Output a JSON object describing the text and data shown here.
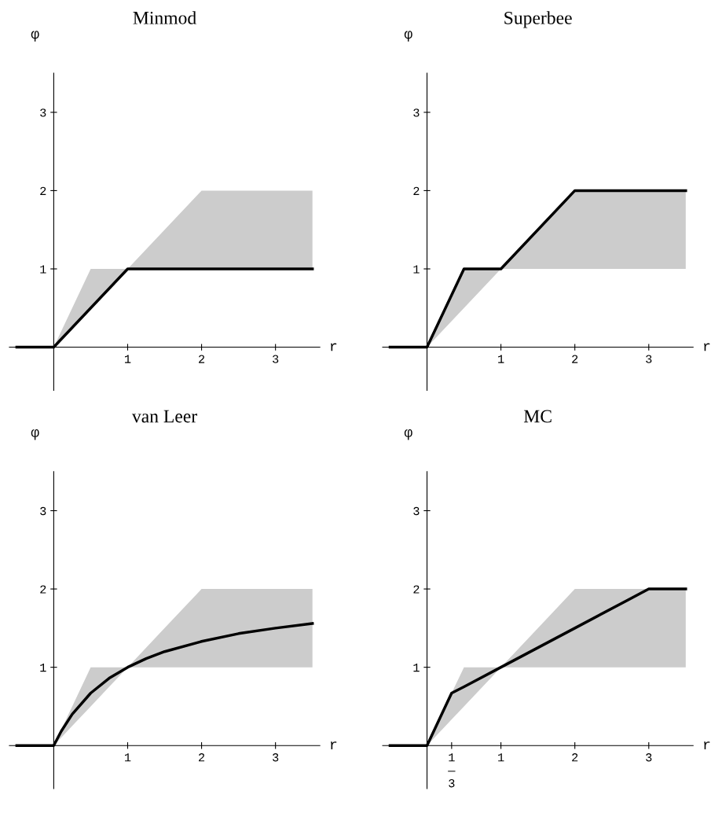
{
  "chart_data": [
    {
      "type": "line",
      "title": "Minmod",
      "xlabel": "r",
      "ylabel": "φ",
      "xlim": [
        -0.6,
        3.6
      ],
      "ylim": [
        -0.55,
        3.5
      ],
      "xticks": [
        1,
        2,
        3
      ],
      "yticks": [
        1,
        2,
        3
      ],
      "series": [
        {
          "color": "#000000",
          "x": [
            -0.5,
            0,
            0.5,
            1,
            2,
            3.5
          ],
          "values": [
            0,
            0,
            0.5,
            1,
            1,
            1
          ],
          "lower": [
            null,
            0,
            0.5,
            1,
            1,
            1
          ],
          "upper": [
            null,
            0,
            1,
            1,
            2,
            2
          ]
        }
      ]
    },
    {
      "type": "line",
      "title": "Superbee",
      "xlabel": "r",
      "ylabel": "φ",
      "xlim": [
        -0.6,
        3.6
      ],
      "ylim": [
        -0.55,
        3.5
      ],
      "xticks": [
        1,
        2,
        3
      ],
      "yticks": [
        1,
        2,
        3
      ],
      "series": [
        {
          "color": "#000000",
          "x": [
            -0.5,
            0,
            0.5,
            1,
            2,
            3.5
          ],
          "values": [
            0,
            0,
            1,
            1,
            2,
            2
          ],
          "lower": [
            null,
            0,
            0.5,
            1,
            1,
            1
          ],
          "upper": [
            null,
            0,
            1,
            1,
            2,
            2
          ]
        }
      ]
    },
    {
      "type": "line",
      "title": "van Leer",
      "xlabel": "r",
      "ylabel": "φ",
      "xlim": [
        -0.6,
        3.6
      ],
      "ylim": [
        -0.55,
        3.5
      ],
      "xticks": [
        1,
        2,
        3
      ],
      "yticks": [
        1,
        2,
        3
      ],
      "series": [
        {
          "color": "#000000",
          "x": [
            -0.5,
            0,
            0.1,
            0.25,
            0.5,
            0.75,
            1,
            1.25,
            1.5,
            2,
            2.5,
            3,
            3.5
          ],
          "values": [
            0,
            0,
            0.18,
            0.4,
            0.67,
            0.86,
            1,
            1.11,
            1.2,
            1.33,
            1.43,
            1.5,
            1.56
          ],
          "lower": [
            null,
            0,
            0.1,
            0.25,
            0.5,
            0.75,
            1,
            1,
            1,
            1,
            1,
            1,
            1
          ],
          "upper": [
            null,
            0,
            0.2,
            0.5,
            1,
            1,
            1,
            1.25,
            1.5,
            2,
            2,
            2,
            2
          ]
        }
      ]
    },
    {
      "type": "line",
      "title": "MC",
      "xlabel": "r",
      "ylabel": "φ",
      "xlim": [
        -0.6,
        3.6
      ],
      "ylim": [
        -0.55,
        3.5
      ],
      "xticks": [
        {
          "value": 0.333,
          "label": "1\n―\n3"
        },
        1,
        2,
        3
      ],
      "yticks": [
        1,
        2,
        3
      ],
      "series": [
        {
          "color": "#000000",
          "x": [
            -0.5,
            0,
            0.333,
            0.5,
            1,
            2,
            3,
            3.5
          ],
          "values": [
            0,
            0,
            0.67,
            0.75,
            1,
            1.5,
            2,
            2
          ],
          "lower": [
            null,
            0,
            0.333,
            0.5,
            1,
            1,
            1,
            1
          ],
          "upper": [
            null,
            0,
            0.67,
            1,
            1,
            2,
            2,
            2
          ]
        }
      ]
    }
  ]
}
